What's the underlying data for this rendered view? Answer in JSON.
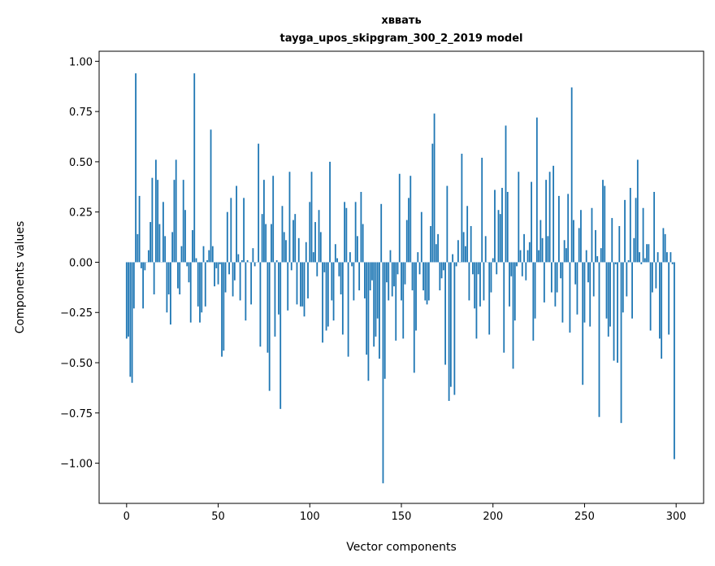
{
  "chart_data": {
    "type": "bar",
    "title": "хввать",
    "subtitle": "tayga_upos_skipgram_300_2_2019 model",
    "xlabel": "Vector components",
    "ylabel": "Components values",
    "xlim": [
      -15,
      315
    ],
    "ylim": [
      -1.2,
      1.05
    ],
    "xticks": [
      0,
      50,
      100,
      150,
      200,
      250,
      300
    ],
    "xtick_labels": [
      "0",
      "50",
      "100",
      "150",
      "200",
      "250",
      "300"
    ],
    "yticks": [
      -1.0,
      -0.75,
      -0.5,
      -0.25,
      0.0,
      0.25,
      0.5,
      0.75,
      1.0
    ],
    "ytick_labels": [
      "−1.00",
      "−0.75",
      "−0.50",
      "−0.25",
      "0.00",
      "0.25",
      "0.50",
      "0.75",
      "1.00"
    ],
    "grid": false,
    "bar_color": "#1f77b4",
    "values": [
      -0.38,
      -0.37,
      -0.57,
      -0.6,
      -0.23,
      0.94,
      0.14,
      0.33,
      -0.03,
      -0.23,
      -0.04,
      0.0,
      0.06,
      0.2,
      0.42,
      -0.16,
      0.51,
      0.41,
      0.19,
      0.0,
      0.3,
      0.13,
      -0.25,
      -0.16,
      -0.31,
      0.15,
      0.41,
      0.51,
      -0.13,
      -0.16,
      0.08,
      0.41,
      0.26,
      -0.02,
      -0.1,
      -0.3,
      0.16,
      0.94,
      0.02,
      -0.22,
      -0.3,
      -0.25,
      0.08,
      -0.22,
      0.01,
      0.06,
      0.66,
      0.08,
      -0.12,
      -0.03,
      -0.11,
      -0.01,
      -0.47,
      -0.44,
      -0.15,
      0.25,
      -0.06,
      0.32,
      -0.17,
      -0.09,
      0.38,
      0.04,
      -0.19,
      0.01,
      0.32,
      -0.29,
      0.01,
      0.0,
      -0.21,
      0.07,
      -0.02,
      0.0,
      0.59,
      -0.42,
      0.24,
      0.41,
      0.19,
      -0.45,
      -0.64,
      0.19,
      0.43,
      -0.37,
      0.01,
      -0.26,
      -0.73,
      0.28,
      0.15,
      0.11,
      -0.24,
      0.45,
      -0.04,
      0.21,
      0.24,
      -0.21,
      0.12,
      -0.22,
      -0.22,
      -0.27,
      0.1,
      -0.18,
      0.3,
      0.45,
      0.05,
      0.2,
      -0.07,
      0.26,
      0.15,
      -0.4,
      -0.05,
      -0.34,
      -0.32,
      0.5,
      -0.19,
      -0.29,
      0.09,
      0.02,
      -0.07,
      -0.16,
      -0.36,
      0.3,
      0.27,
      -0.47,
      0.05,
      -0.02,
      -0.19,
      0.3,
      0.13,
      -0.14,
      0.35,
      0.19,
      -0.18,
      -0.46,
      -0.59,
      -0.14,
      -0.09,
      -0.42,
      -0.37,
      -0.28,
      -0.48,
      0.29,
      -1.1,
      -0.58,
      -0.1,
      -0.19,
      0.06,
      -0.17,
      -0.12,
      -0.39,
      -0.06,
      0.44,
      -0.19,
      -0.38,
      -0.11,
      0.21,
      0.32,
      0.43,
      -0.14,
      -0.55,
      -0.34,
      0.05,
      -0.06,
      0.25,
      -0.14,
      -0.19,
      -0.21,
      -0.19,
      0.18,
      0.59,
      0.74,
      0.09,
      0.14,
      -0.14,
      -0.08,
      -0.04,
      -0.51,
      0.38,
      -0.69,
      -0.62,
      0.04,
      -0.66,
      -0.02,
      0.11,
      0.0,
      0.54,
      0.15,
      0.08,
      0.28,
      -0.19,
      0.18,
      -0.06,
      -0.23,
      -0.38,
      -0.06,
      -0.22,
      0.52,
      -0.19,
      0.13,
      0.0,
      -0.36,
      -0.15,
      0.02,
      0.36,
      -0.06,
      0.26,
      0.24,
      0.37,
      -0.45,
      0.68,
      0.35,
      -0.22,
      -0.07,
      -0.53,
      -0.29,
      -0.02,
      0.45,
      0.06,
      -0.07,
      0.14,
      -0.09,
      0.06,
      0.1,
      0.4,
      -0.39,
      -0.28,
      0.72,
      0.06,
      0.21,
      0.12,
      -0.2,
      0.41,
      0.13,
      0.45,
      -0.15,
      0.48,
      -0.22,
      -0.15,
      0.33,
      -0.08,
      -0.3,
      0.11,
      0.07,
      0.34,
      -0.35,
      0.87,
      0.21,
      -0.11,
      -0.26,
      0.17,
      0.26,
      -0.61,
      -0.3,
      0.06,
      -0.1,
      -0.32,
      0.27,
      -0.17,
      0.16,
      0.03,
      -0.77,
      0.07,
      0.41,
      0.38,
      -0.28,
      -0.37,
      -0.32,
      0.22,
      -0.49,
      -0.01,
      -0.5,
      0.18,
      -0.8,
      -0.25,
      0.31,
      -0.17,
      0.01,
      0.37,
      -0.28,
      0.12,
      0.32,
      0.51,
      0.05,
      -0.01,
      0.27,
      0.02,
      0.09,
      0.09,
      -0.34,
      -0.15,
      0.35,
      -0.13,
      0.05,
      -0.38,
      -0.48,
      0.17,
      0.14,
      0.05,
      -0.36,
      0.05,
      -0.01,
      -0.98
    ]
  }
}
